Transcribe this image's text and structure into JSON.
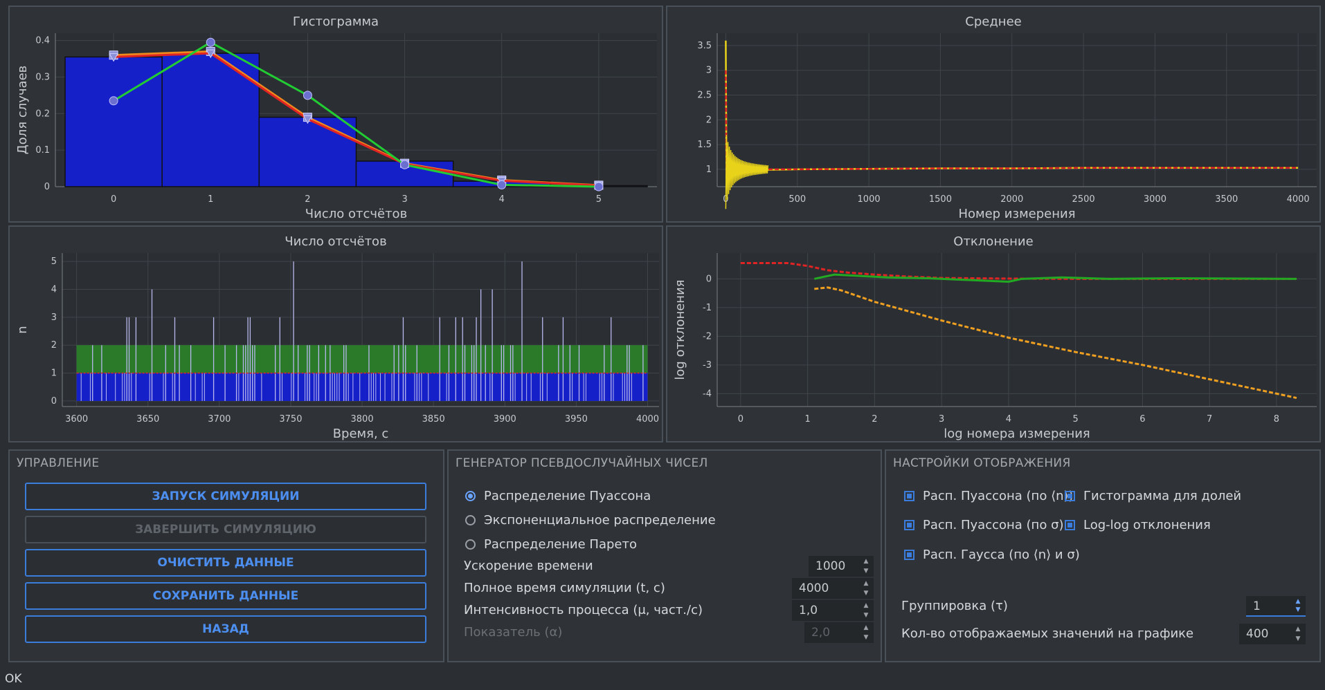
{
  "charts": {
    "histogram": {
      "title": "Гистограмма",
      "xlabel": "Число отсчётов",
      "ylabel": "Доля случаев"
    },
    "mean": {
      "title": "Среднее",
      "xlabel": "Номер измерения",
      "ylabel": ""
    },
    "counts": {
      "title": "Число отсчётов",
      "xlabel": "Время, с",
      "ylabel": "n"
    },
    "deviation": {
      "title": "Отклонение",
      "xlabel": "log номера измерения",
      "ylabel": "log отклонения"
    }
  },
  "chart_data": [
    {
      "type": "bar",
      "title": "Гистограмма",
      "xlabel": "Число отсчётов",
      "ylabel": "Доля случаев",
      "categories": [
        0,
        1,
        2,
        3,
        4,
        5
      ],
      "values": [
        0.355,
        0.365,
        0.19,
        0.07,
        0.015,
        0.003
      ],
      "ylim": [
        0,
        0.42
      ],
      "xlim": [
        -0.6,
        5.6
      ],
      "yticks": [
        0,
        0.1,
        0.2,
        0.3,
        0.4
      ],
      "series": [
        {
          "values": [
            0.36,
            0.37,
            0.19,
            0.064,
            0.018,
            0.004
          ],
          "color": "#f08a1c"
        },
        {
          "values": [
            0.355,
            0.365,
            0.185,
            0.062,
            0.016,
            0.003
          ],
          "color": "#e02424"
        },
        {
          "values": [
            0.235,
            0.395,
            0.25,
            0.06,
            0.005,
            0.0
          ],
          "color": "#22cc33"
        }
      ],
      "colors": {
        "bars": "#1620c8",
        "grid": "#3f4449"
      }
    },
    {
      "type": "line",
      "title": "Среднее",
      "xlabel": "Номер измерения",
      "ylabel": "",
      "xlim": [
        -60,
        4130
      ],
      "ylim": [
        0.65,
        3.75
      ],
      "xticks": [
        0,
        500,
        1000,
        1500,
        2000,
        2500,
        3000,
        3500,
        4000
      ],
      "yticks": [
        1,
        1.5,
        2,
        2.5,
        3,
        3.5
      ],
      "x": [
        0,
        5,
        10,
        20,
        40,
        80,
        150,
        300,
        500,
        1000,
        1500,
        2000,
        2500,
        3000,
        3500,
        4000
      ],
      "series": [
        {
          "values": [
            3.6,
            0.8,
            1.4,
            0.9,
            1.1,
            1.05,
            0.98,
            0.99,
            1.0,
            1.01,
            1.02,
            1.02,
            1.03,
            1.03,
            1.03,
            1.03
          ],
          "color": "#e8d31a"
        },
        {
          "values": [
            3.0,
            0.9,
            1.2,
            0.95,
            1.05,
            1.02,
            0.99,
            1.0,
            1.0,
            1.01,
            1.02,
            1.02,
            1.03,
            1.03,
            1.03,
            1.03
          ],
          "color": "#e02424"
        }
      ]
    },
    {
      "type": "bar",
      "title": "Число отсчётов",
      "xlabel": "Время, с",
      "ylabel": "n",
      "xlim": [
        3590,
        4008
      ],
      "ylim": [
        -0.2,
        5.3
      ],
      "xticks": [
        3600,
        3650,
        3700,
        3750,
        3800,
        3850,
        3900,
        3950,
        4000
      ],
      "yticks": [
        0,
        1,
        2,
        3,
        4,
        5
      ],
      "band": [
        1,
        2
      ],
      "mean_level": 1.0,
      "colors": {
        "bars": "#1620c8",
        "band": "#2a7a2a",
        "spikes": "#b8b8ee"
      }
    },
    {
      "type": "line",
      "title": "Отклонение",
      "xlabel": "log номера измерения",
      "ylabel": "log отклонения",
      "xlim": [
        -0.35,
        8.6
      ],
      "ylim": [
        -4.45,
        0.9
      ],
      "xticks": [
        0,
        1,
        2,
        3,
        4,
        5,
        6,
        7,
        8
      ],
      "yticks": [
        0,
        -1,
        -2,
        -3,
        -4
      ],
      "series": [
        {
          "x": [
            0,
            0.7,
            1.0,
            1.3,
            1.6,
            2.0,
            2.5,
            3.0,
            4.0,
            5.0,
            6.0,
            7.0,
            8.3
          ],
          "values": [
            0.55,
            0.55,
            0.45,
            0.3,
            0.22,
            0.15,
            0.08,
            0.03,
            0.01,
            0.0,
            0.0,
            0.0,
            0.0
          ],
          "color": "#e02424"
        },
        {
          "x": [
            1.1,
            1.4,
            1.8,
            2.2,
            2.8,
            3.5,
            4.0,
            4.2,
            4.8,
            5.5,
            6.5,
            8.3
          ],
          "values": [
            0.0,
            0.15,
            0.1,
            0.05,
            0.02,
            -0.05,
            -0.1,
            0.0,
            0.05,
            0.0,
            0.02,
            0.0
          ],
          "color": "#22aa22"
        },
        {
          "x": [
            1.1,
            1.3,
            1.5,
            2.0,
            3.0,
            4.0,
            5.0,
            6.0,
            7.0,
            8.3
          ],
          "values": [
            -0.35,
            -0.3,
            -0.4,
            -0.8,
            -1.45,
            -2.05,
            -2.55,
            -3.0,
            -3.5,
            -4.15
          ],
          "color": "#f0a020"
        }
      ]
    }
  ],
  "control": {
    "title": "УПРАВЛЕНИЕ",
    "start": "ЗАПУСК СИМУЛЯЦИИ",
    "stop": "ЗАВЕРШИТЬ СИМУЛЯЦИЮ",
    "clear": "ОЧИСТИТЬ ДАННЫЕ",
    "save": "СОХРАНИТЬ ДАННЫЕ",
    "back": "НАЗАД"
  },
  "generator": {
    "title": "ГЕНЕРАТОР ПСЕВДОСЛУЧАЙНЫХ ЧИСЕЛ",
    "dist_poisson": "Распределение Пуассона",
    "dist_exp": "Экспоненциальное распределение",
    "dist_pareto": "Распределение Парето",
    "speed_label": "Ускорение времени",
    "speed_value": "1000",
    "total_label": "Полное время симуляции (t, с)",
    "total_value": "4000",
    "intensity_label": "Интенсивность процесса (μ, част./с)",
    "intensity_value": "1,0",
    "alpha_label": "Показатель (α)",
    "alpha_value": "2,0"
  },
  "display": {
    "title": "НАСТРОЙКИ ОТОБРАЖЕНИЯ",
    "poisson_mean": "Расп. Пуассона (по ⟨n⟩)",
    "hist_fraction": "Гистограмма для долей",
    "poisson_sigma": "Расп. Пуассона (по σ)",
    "loglog": "Log-log отклонения",
    "gauss": "Расп. Гаусса (по ⟨n⟩ и σ)",
    "group_label": "Группировка (τ)",
    "group_value": "1",
    "count_label": "Кол-во отображаемых значений на графике",
    "count_value": "400"
  },
  "status": {
    "text": "OK"
  }
}
